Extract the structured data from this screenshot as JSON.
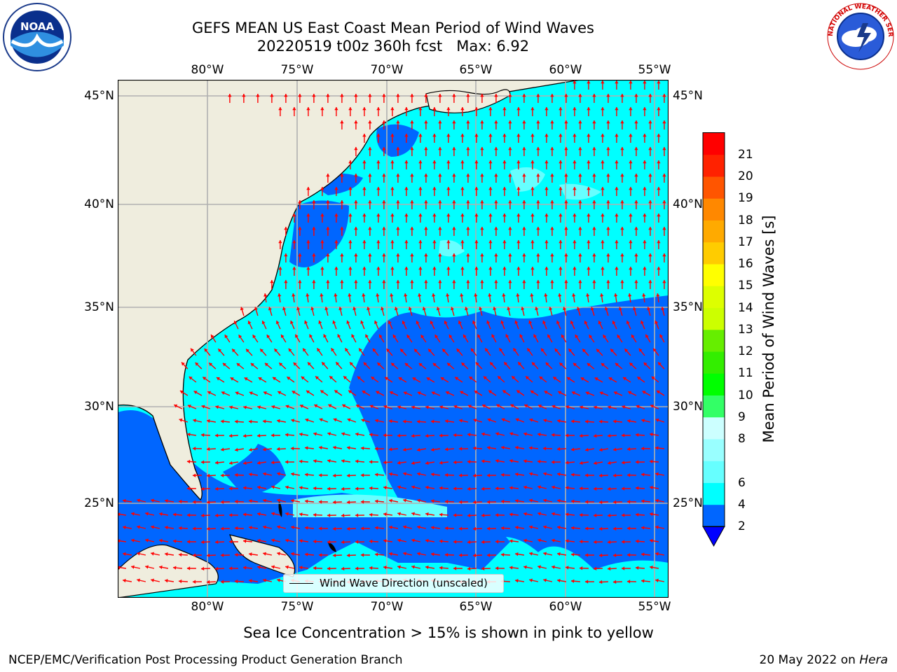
{
  "header": {
    "title_line1": "GEFS MEAN US East Coast Mean Period of Wind Waves",
    "title_line2": "20220519 t00z 360h fcst   Max: 6.92"
  },
  "logos": {
    "left": {
      "icon": "noaa-logo-icon",
      "text": "NOAA"
    },
    "right": {
      "icon": "nws-logo-icon",
      "text": "NATIONAL WEATHER SERVICE"
    }
  },
  "map": {
    "lon_labels": [
      "80°W",
      "75°W",
      "70°W",
      "65°W",
      "60°W",
      "55°W"
    ],
    "lat_labels": [
      "45°N",
      "40°N",
      "35°N",
      "30°N",
      "25°N"
    ],
    "land_color": "#efedde",
    "grid_color": "#b0b0b0",
    "arrow_color": "#ff0000",
    "legend_label": "Wind Wave Direction (unscaled)"
  },
  "colorbar": {
    "title": "Mean Period of Wind Waves [s]",
    "levels": [
      "2",
      "4",
      "6",
      "7",
      "8",
      "9",
      "10",
      "11",
      "12",
      "13",
      "14",
      "15",
      "16",
      "17",
      "18",
      "19",
      "20",
      "21"
    ],
    "label_values": [
      "2",
      "4",
      "6",
      "8",
      "9",
      "10",
      "11",
      "12",
      "13",
      "14",
      "15",
      "16",
      "17",
      "18",
      "19",
      "20",
      "21"
    ],
    "colors": [
      "#0066ff",
      "#00ffff",
      "#66ffff",
      "#99ffff",
      "#ccffff",
      "#33ff66",
      "#00ff00",
      "#33ee00",
      "#66ee00",
      "#ccff00",
      "#ddff00",
      "#ffff00",
      "#ffcc00",
      "#ffaa00",
      "#ff8800",
      "#ff5500",
      "#ff2200",
      "#ff0000"
    ],
    "under_color": "#0000ff"
  },
  "caption": "Sea Ice Concentration > 15% is shown in pink to yellow",
  "footer": {
    "left": "NCEP/EMC/Verification Post Processing Product Generation Branch",
    "right_prefix": "20 May 2022 on ",
    "right_machine": "Hera"
  }
}
